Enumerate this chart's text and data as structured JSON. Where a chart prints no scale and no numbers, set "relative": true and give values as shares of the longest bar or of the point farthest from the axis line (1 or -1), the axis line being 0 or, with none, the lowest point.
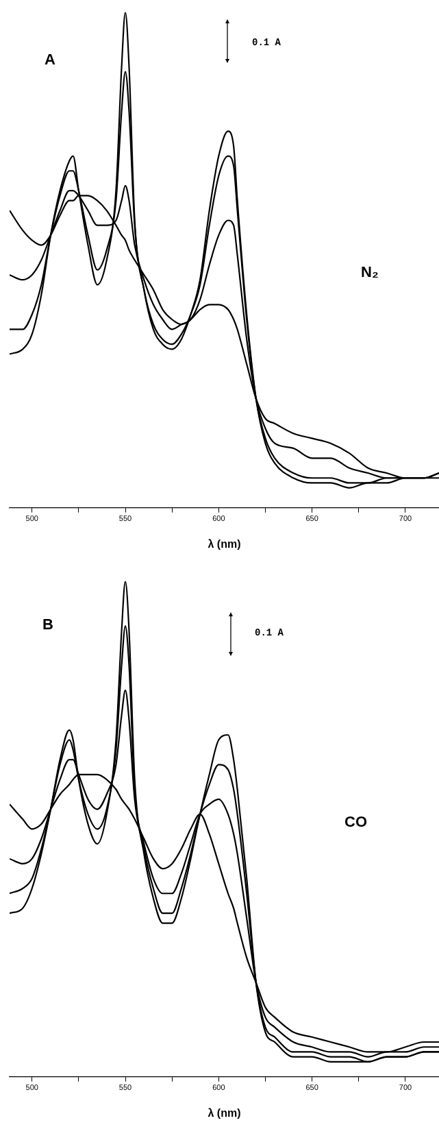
{
  "chart_data": [
    {
      "type": "line",
      "xlabel": "λ (nm)",
      "annotations": [
        "A",
        "0.1 A",
        "N₂"
      ],
      "relative": true,
      "xlim": [
        488,
        718
      ],
      "xticks": [
        500,
        {
          "value": 525,
          "label": null
        },
        550,
        {
          "value": 575,
          "label": null
        },
        600,
        {
          "value": 625,
          "label": null
        },
        650,
        {
          "value": 675,
          "label": null
        },
        700
      ],
      "x": [
        488,
        495,
        500,
        505,
        510,
        515,
        520,
        522,
        525,
        530,
        535,
        540,
        545,
        548,
        550,
        552,
        555,
        560,
        565,
        570,
        575,
        580,
        585,
        590,
        595,
        600,
        605,
        608,
        610,
        615,
        620,
        625,
        630,
        640,
        650,
        660,
        670,
        680,
        690,
        700,
        710,
        718
      ],
      "series": [
        {
          "color": "#000000",
          "values": [
            0.6,
            0.56,
            0.54,
            0.53,
            0.55,
            0.59,
            0.62,
            0.62,
            0.63,
            0.63,
            0.62,
            0.6,
            0.57,
            0.55,
            0.54,
            0.52,
            0.5,
            0.47,
            0.44,
            0.4,
            0.38,
            0.37,
            0.38,
            0.4,
            0.41,
            0.41,
            0.4,
            0.38,
            0.36,
            0.29,
            0.22,
            0.18,
            0.17,
            0.15,
            0.14,
            0.13,
            0.11,
            0.08,
            0.07,
            0.06,
            0.06,
            0.07
          ]
        },
        {
          "color": "#000000",
          "values": [
            0.47,
            0.46,
            0.47,
            0.5,
            0.55,
            0.6,
            0.64,
            0.64,
            0.63,
            0.6,
            0.57,
            0.57,
            0.58,
            0.62,
            0.65,
            0.62,
            0.53,
            0.46,
            0.41,
            0.38,
            0.36,
            0.37,
            0.38,
            0.42,
            0.49,
            0.55,
            0.58,
            0.57,
            0.51,
            0.34,
            0.22,
            0.16,
            0.13,
            0.12,
            0.1,
            0.1,
            0.08,
            0.07,
            0.06,
            0.06,
            0.06,
            0.07
          ]
        },
        {
          "color": "#000000",
          "values": [
            0.36,
            0.36,
            0.39,
            0.45,
            0.55,
            0.63,
            0.68,
            0.68,
            0.64,
            0.55,
            0.48,
            0.52,
            0.62,
            0.8,
            0.88,
            0.8,
            0.57,
            0.44,
            0.37,
            0.34,
            0.33,
            0.35,
            0.39,
            0.45,
            0.57,
            0.67,
            0.71,
            0.69,
            0.6,
            0.38,
            0.22,
            0.14,
            0.1,
            0.07,
            0.06,
            0.06,
            0.05,
            0.05,
            0.06,
            0.06,
            0.06,
            0.07
          ]
        },
        {
          "color": "#000000",
          "values": [
            0.31,
            0.32,
            0.35,
            0.43,
            0.55,
            0.64,
            0.7,
            0.71,
            0.64,
            0.53,
            0.45,
            0.5,
            0.64,
            0.89,
            1.0,
            0.89,
            0.58,
            0.44,
            0.36,
            0.33,
            0.32,
            0.34,
            0.39,
            0.46,
            0.6,
            0.71,
            0.76,
            0.73,
            0.62,
            0.39,
            0.22,
            0.13,
            0.09,
            0.06,
            0.05,
            0.05,
            0.04,
            0.05,
            0.05,
            0.06,
            0.06,
            0.06
          ]
        }
      ]
    },
    {
      "type": "line",
      "xlabel": "λ (nm)",
      "annotations": [
        "B",
        "0.1 A",
        "CO"
      ],
      "relative": true,
      "xlim": [
        488,
        718
      ],
      "xticks": [
        500,
        {
          "value": 525,
          "label": null
        },
        550,
        {
          "value": 575,
          "label": null
        },
        600,
        {
          "value": 625,
          "label": null
        },
        650,
        {
          "value": 675,
          "label": null
        },
        700
      ],
      "x": [
        488,
        495,
        500,
        505,
        510,
        515,
        520,
        522,
        525,
        530,
        535,
        540,
        545,
        548,
        550,
        552,
        555,
        560,
        565,
        570,
        575,
        580,
        585,
        590,
        595,
        600,
        605,
        608,
        610,
        615,
        620,
        625,
        630,
        640,
        650,
        660,
        670,
        680,
        690,
        700,
        710,
        718
      ],
      "series": [
        {
          "color": "#000000",
          "values": [
            0.55,
            0.52,
            0.5,
            0.51,
            0.54,
            0.57,
            0.59,
            0.6,
            0.61,
            0.61,
            0.61,
            0.6,
            0.58,
            0.56,
            0.55,
            0.54,
            0.52,
            0.48,
            0.44,
            0.42,
            0.43,
            0.46,
            0.5,
            0.53,
            0.49,
            0.43,
            0.37,
            0.34,
            0.31,
            0.24,
            0.19,
            0.14,
            0.12,
            0.09,
            0.08,
            0.07,
            0.06,
            0.05,
            0.05,
            0.06,
            0.07,
            0.07
          ]
        },
        {
          "color": "#000000",
          "values": [
            0.44,
            0.43,
            0.44,
            0.48,
            0.54,
            0.6,
            0.64,
            0.64,
            0.61,
            0.56,
            0.54,
            0.57,
            0.63,
            0.73,
            0.78,
            0.72,
            0.56,
            0.47,
            0.4,
            0.37,
            0.37,
            0.41,
            0.47,
            0.53,
            0.55,
            0.56,
            0.53,
            0.49,
            0.45,
            0.32,
            0.19,
            0.12,
            0.1,
            0.07,
            0.06,
            0.05,
            0.05,
            0.04,
            0.05,
            0.05,
            0.06,
            0.06
          ]
        },
        {
          "color": "#000000",
          "values": [
            0.37,
            0.38,
            0.4,
            0.46,
            0.54,
            0.63,
            0.68,
            0.66,
            0.6,
            0.53,
            0.5,
            0.54,
            0.66,
            0.83,
            0.91,
            0.83,
            0.58,
            0.46,
            0.38,
            0.33,
            0.33,
            0.38,
            0.45,
            0.53,
            0.59,
            0.63,
            0.62,
            0.58,
            0.53,
            0.37,
            0.19,
            0.1,
            0.08,
            0.05,
            0.05,
            0.04,
            0.04,
            0.03,
            0.04,
            0.04,
            0.05,
            0.05
          ]
        },
        {
          "color": "#000000",
          "values": [
            0.33,
            0.34,
            0.38,
            0.45,
            0.54,
            0.64,
            0.7,
            0.68,
            0.6,
            0.51,
            0.47,
            0.53,
            0.68,
            0.9,
            1.0,
            0.9,
            0.6,
            0.45,
            0.36,
            0.31,
            0.31,
            0.36,
            0.44,
            0.53,
            0.61,
            0.68,
            0.69,
            0.64,
            0.58,
            0.4,
            0.19,
            0.09,
            0.07,
            0.04,
            0.04,
            0.03,
            0.03,
            0.03,
            0.04,
            0.04,
            0.05,
            0.05
          ]
        }
      ]
    }
  ]
}
